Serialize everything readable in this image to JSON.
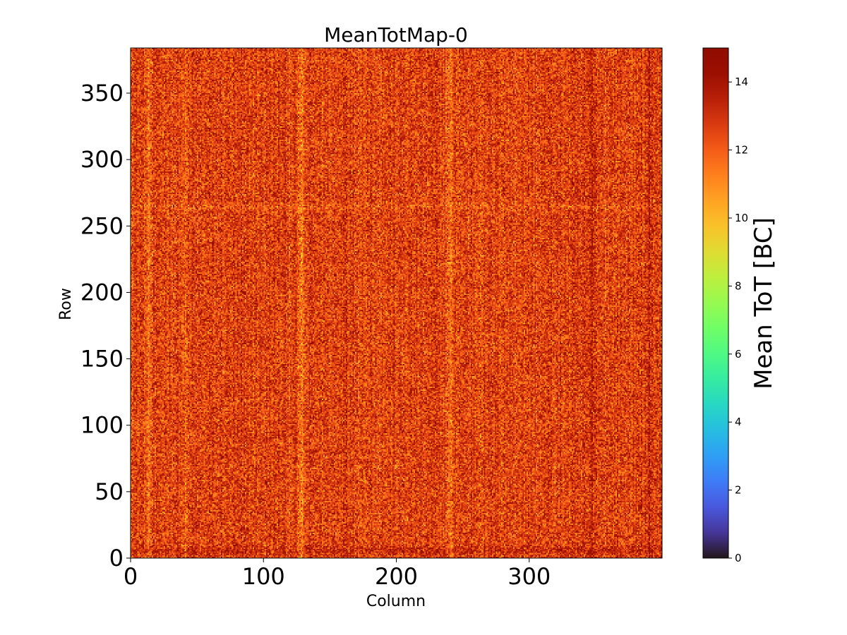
{
  "chart_data": {
    "type": "heatmap",
    "title": "MeanTotMap-0",
    "xlabel": "Column",
    "ylabel": "Row",
    "colorbar_label": "Mean ToT [BC]",
    "colormap": "turbo",
    "xlim": [
      0,
      400
    ],
    "ylim": [
      0,
      384
    ],
    "clim": [
      0,
      15
    ],
    "grid": false,
    "x_ticks": [
      0,
      100,
      200,
      300
    ],
    "y_ticks": [
      0,
      50,
      100,
      150,
      200,
      250,
      300,
      350
    ],
    "colorbar_ticks": [
      0,
      2,
      4,
      6,
      8,
      10,
      12,
      14
    ],
    "value_summary": {
      "typical_range": [
        10.5,
        14.5
      ],
      "mean": 12.6
    },
    "column_bands": [
      {
        "column": 13,
        "mean": 11.6
      },
      {
        "column": 41,
        "mean": 11.9
      },
      {
        "column": 128,
        "mean": 11.2
      },
      {
        "column": 161,
        "mean": 13.2
      },
      {
        "column": 240,
        "mean": 11.5
      },
      {
        "column": 347,
        "mean": 13.4
      },
      {
        "column": 390,
        "mean": 13.5
      }
    ],
    "row_bands": [
      {
        "row": 5,
        "mean": 13.3
      },
      {
        "row": 264,
        "mean": 12.1
      }
    ]
  }
}
